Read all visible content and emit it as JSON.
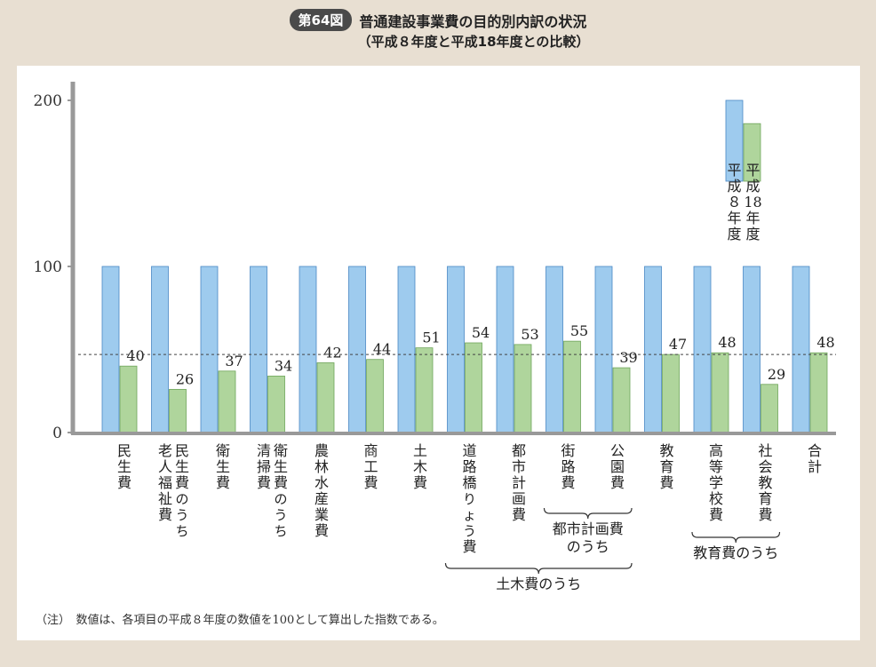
{
  "header": {
    "figure_label": "第64図",
    "title": "普通建設事業費の目的別内訳の状況",
    "subtitle": "（平成８年度と平成18年度との比較）"
  },
  "note": "（注）　数値は、各項目の平成８年度の数値を100として算出した指数である。",
  "colors": {
    "h8": "#9ecbee",
    "h18": "#afd59c",
    "axis": "#999999"
  },
  "chart_data": {
    "type": "bar",
    "ylim": [
      0,
      215
    ],
    "yticks": [
      0,
      100,
      200
    ],
    "reference_line": 47,
    "series": [
      {
        "name": "平成８年度",
        "values": [
          100,
          100,
          100,
          100,
          100,
          100,
          100,
          100,
          100,
          100,
          100,
          100,
          100,
          100,
          100
        ]
      },
      {
        "name": "平成18年度",
        "values": [
          40,
          26,
          37,
          34,
          42,
          44,
          51,
          54,
          53,
          55,
          39,
          47,
          48,
          29,
          48
        ]
      }
    ],
    "categories": [
      {
        "lines": [
          "民生費"
        ]
      },
      {
        "lines": [
          "民生費のうち",
          "老人福祉費"
        ]
      },
      {
        "lines": [
          "衛生費"
        ]
      },
      {
        "lines": [
          "衛生費のうち",
          "清掃費"
        ]
      },
      {
        "lines": [
          "農林水産業費"
        ]
      },
      {
        "lines": [
          "商工費"
        ]
      },
      {
        "lines": [
          "土木費"
        ]
      },
      {
        "lines": [
          "道路橋りょう費"
        ]
      },
      {
        "lines": [
          "都市計画費"
        ]
      },
      {
        "lines": [
          "街路費"
        ]
      },
      {
        "lines": [
          "公園費"
        ]
      },
      {
        "lines": [
          "教育費"
        ]
      },
      {
        "lines": [
          "高等学校費"
        ]
      },
      {
        "lines": [
          "社会教育費"
        ]
      },
      {
        "lines": [
          "合計"
        ]
      }
    ],
    "groups": [
      {
        "label": "都市計画費のうち",
        "label_lines": [
          "都市計画費",
          "のうち"
        ],
        "from": 9,
        "to": 10
      },
      {
        "label": "教育費のうち",
        "label_lines": [
          "教育費のうち"
        ],
        "from": 12,
        "to": 13
      },
      {
        "label": "土木費のうち",
        "label_lines": [
          "土木費のうち"
        ],
        "from": 7,
        "to": 10
      }
    ],
    "legend": {
      "position": "top-right",
      "bars": [
        200,
        186
      ],
      "labels": [
        "平成８年度",
        "平成18年度"
      ]
    }
  }
}
